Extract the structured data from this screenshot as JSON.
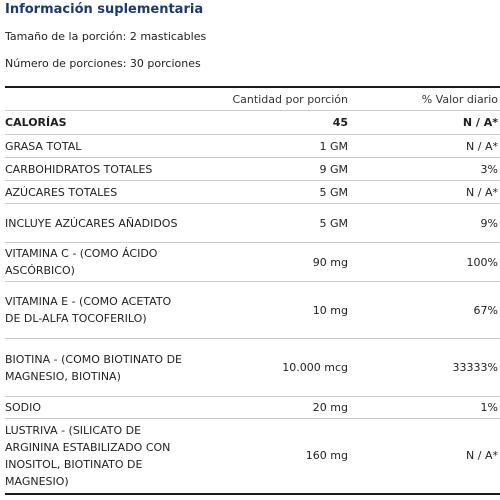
{
  "title": "Información suplementaria",
  "serving_size": "Tamaño de la porción: 2 masticables",
  "servings_per_container": "Número de porciones: 30 porciones",
  "header": {
    "name": "",
    "amount": "Cantidad por porción",
    "dv": "% Valor diario"
  },
  "rows": [
    {
      "name": "CALORÍAS",
      "amount": "45",
      "dv": "N / A*"
    },
    {
      "name": "GRASA TOTAL",
      "amount": "1 GM",
      "dv": "N / A*"
    },
    {
      "name": "CARBOHIDRATOS TOTALES",
      "amount": "9 GM",
      "dv": "3%"
    },
    {
      "name": "AZÚCARES TOTALES",
      "amount": "5 GM",
      "dv": "N / A*"
    },
    {
      "name": "INCLUYE AZÚCARES AÑADIDOS",
      "amount": "5 GM",
      "dv": "9%"
    },
    {
      "name": "VITAMINA C - (COMO ÁCIDO ASCÓRBICO)",
      "amount": "90 mg",
      "dv": "100%"
    },
    {
      "name": "VITAMINA E - (COMO ACETATO DE DL-ALFA TOCOFERILO)",
      "amount": "10 mg",
      "dv": "67%"
    },
    {
      "name": "BIOTINA - (COMO BIOTINATO DE MAGNESIO, BIOTINA)",
      "amount": "10.000 mcg",
      "dv": "33333%"
    },
    {
      "name": "SODIO",
      "amount": "20 mg",
      "dv": "1%"
    },
    {
      "name": "LUSTRIVA - (SILICATO DE ARGININA ESTABILIZADO CON INOSITOL, BIOTINATO DE MAGNESIO)",
      "amount": "160 mg",
      "dv": "N / A*"
    }
  ]
}
